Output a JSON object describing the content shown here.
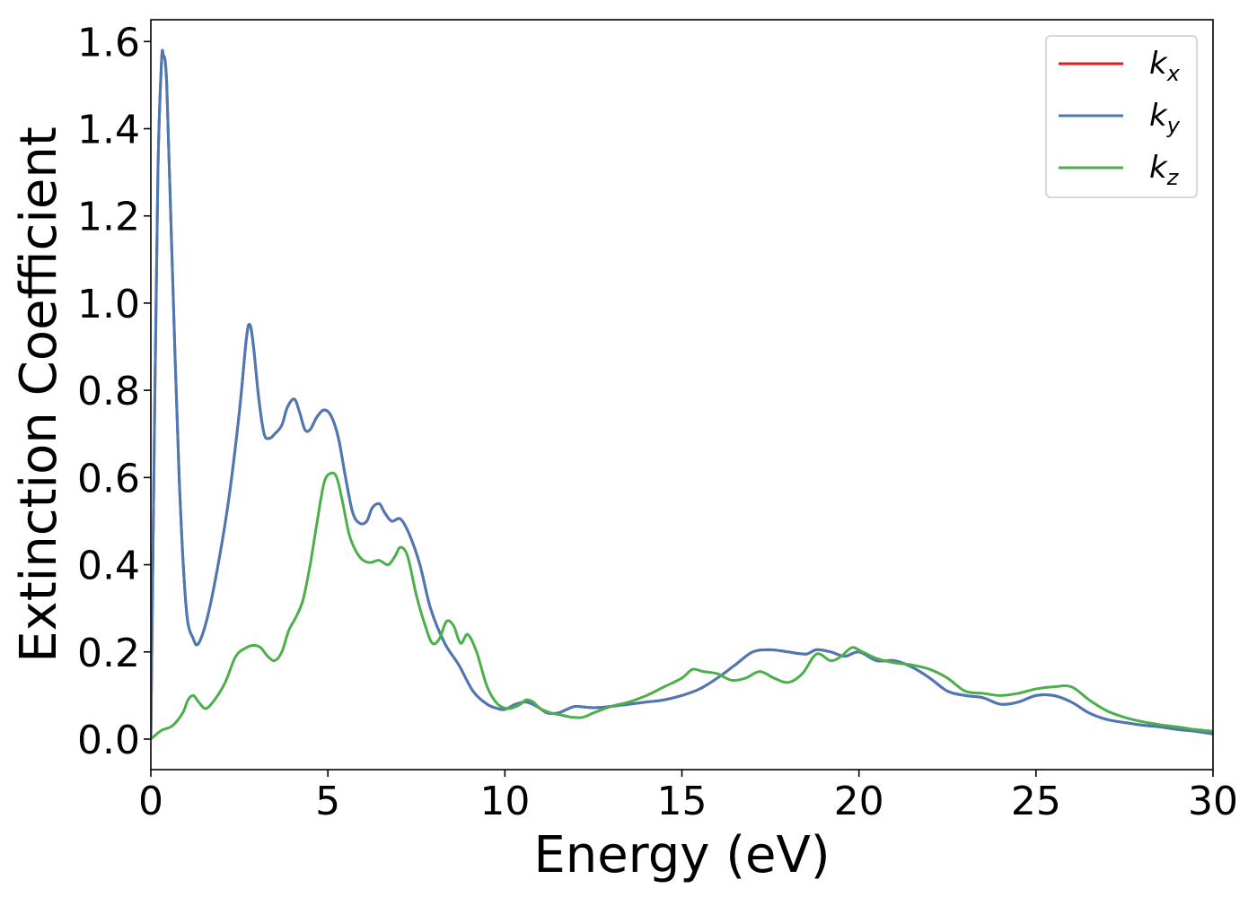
{
  "chart_data": {
    "type": "line",
    "xlabel": "Energy (eV)",
    "ylabel": "Extinction Coefficient",
    "xlim": [
      0,
      30
    ],
    "ylim": [
      -0.07,
      1.65
    ],
    "xticks": [
      0,
      5,
      10,
      15,
      20,
      25,
      30
    ],
    "xtick_labels": [
      "0",
      "5",
      "10",
      "15",
      "20",
      "25",
      "30"
    ],
    "yticks": [
      0.0,
      0.2,
      0.4,
      0.6,
      0.8,
      1.0,
      1.2,
      1.4,
      1.6
    ],
    "ytick_labels": [
      "0.0",
      "0.2",
      "0.4",
      "0.6",
      "0.8",
      "1.0",
      "1.2",
      "1.4",
      "1.6"
    ],
    "grid": false,
    "legend_position": "top-right",
    "series": [
      {
        "name": "k_x",
        "legend_main": "k",
        "legend_sub": "x",
        "color": "#e41a1c",
        "x": [
          0,
          0.1,
          0.2,
          0.3,
          0.35,
          0.45,
          0.6,
          0.8,
          1.0,
          1.2,
          1.35,
          1.6,
          1.9,
          2.2,
          2.5,
          2.7,
          2.8,
          2.9,
          3.05,
          3.2,
          3.35,
          3.5,
          3.7,
          3.85,
          4.05,
          4.2,
          4.35,
          4.5,
          4.7,
          4.9,
          5.1,
          5.3,
          5.5,
          5.7,
          5.9,
          6.1,
          6.25,
          6.45,
          6.6,
          6.8,
          7.05,
          7.3,
          7.6,
          7.9,
          8.3,
          8.7,
          9.1,
          9.5,
          9.8,
          10.0,
          10.3,
          10.6,
          10.9,
          11.2,
          11.5,
          11.8,
          12.0,
          12.5,
          13.0,
          13.5,
          14.0,
          14.5,
          15.0,
          15.5,
          16.0,
          16.5,
          17.0,
          17.5,
          18.0,
          18.5,
          18.8,
          19.2,
          19.6,
          20.0,
          20.5,
          21.0,
          21.5,
          22.0,
          22.5,
          23.0,
          23.5,
          24.0,
          24.5,
          25.0,
          25.5,
          26.0,
          26.5,
          27.0,
          27.5,
          28.0,
          28.5,
          29.0,
          29.5,
          30.0
        ],
        "y": [
          0.0,
          0.7,
          1.3,
          1.55,
          1.57,
          1.5,
          1.1,
          0.6,
          0.3,
          0.23,
          0.22,
          0.28,
          0.4,
          0.55,
          0.75,
          0.92,
          0.95,
          0.9,
          0.78,
          0.7,
          0.69,
          0.7,
          0.72,
          0.76,
          0.78,
          0.75,
          0.71,
          0.71,
          0.74,
          0.755,
          0.74,
          0.69,
          0.6,
          0.52,
          0.495,
          0.5,
          0.53,
          0.54,
          0.52,
          0.5,
          0.505,
          0.47,
          0.4,
          0.3,
          0.22,
          0.17,
          0.11,
          0.08,
          0.07,
          0.068,
          0.08,
          0.085,
          0.075,
          0.06,
          0.06,
          0.07,
          0.075,
          0.072,
          0.075,
          0.08,
          0.085,
          0.09,
          0.1,
          0.115,
          0.14,
          0.17,
          0.2,
          0.205,
          0.2,
          0.195,
          0.205,
          0.2,
          0.19,
          0.2,
          0.18,
          0.18,
          0.165,
          0.14,
          0.11,
          0.1,
          0.095,
          0.08,
          0.085,
          0.1,
          0.1,
          0.085,
          0.06,
          0.045,
          0.038,
          0.032,
          0.028,
          0.022,
          0.018,
          0.012
        ]
      },
      {
        "name": "k_y",
        "legend_main": "k",
        "legend_sub": "y",
        "color": "#4a7ab5",
        "x": [
          0,
          0.1,
          0.2,
          0.3,
          0.35,
          0.45,
          0.6,
          0.8,
          1.0,
          1.2,
          1.35,
          1.6,
          1.9,
          2.2,
          2.5,
          2.7,
          2.8,
          2.9,
          3.05,
          3.2,
          3.35,
          3.5,
          3.7,
          3.85,
          4.05,
          4.2,
          4.35,
          4.5,
          4.7,
          4.9,
          5.1,
          5.3,
          5.5,
          5.7,
          5.9,
          6.1,
          6.25,
          6.45,
          6.6,
          6.8,
          7.05,
          7.3,
          7.6,
          7.9,
          8.3,
          8.7,
          9.1,
          9.5,
          9.8,
          10.0,
          10.3,
          10.6,
          10.9,
          11.2,
          11.5,
          11.8,
          12.0,
          12.5,
          13.0,
          13.5,
          14.0,
          14.5,
          15.0,
          15.5,
          16.0,
          16.5,
          17.0,
          17.5,
          18.0,
          18.5,
          18.8,
          19.2,
          19.6,
          20.0,
          20.5,
          21.0,
          21.5,
          22.0,
          22.5,
          23.0,
          23.5,
          24.0,
          24.5,
          25.0,
          25.5,
          26.0,
          26.5,
          27.0,
          27.5,
          28.0,
          28.5,
          29.0,
          29.5,
          30.0
        ],
        "y": [
          0.0,
          0.7,
          1.3,
          1.55,
          1.57,
          1.5,
          1.1,
          0.6,
          0.3,
          0.23,
          0.22,
          0.28,
          0.4,
          0.55,
          0.75,
          0.92,
          0.95,
          0.9,
          0.78,
          0.7,
          0.69,
          0.7,
          0.72,
          0.76,
          0.78,
          0.75,
          0.71,
          0.71,
          0.74,
          0.755,
          0.74,
          0.69,
          0.6,
          0.52,
          0.495,
          0.5,
          0.53,
          0.54,
          0.52,
          0.5,
          0.505,
          0.47,
          0.4,
          0.3,
          0.22,
          0.17,
          0.11,
          0.08,
          0.07,
          0.068,
          0.08,
          0.085,
          0.075,
          0.06,
          0.06,
          0.07,
          0.075,
          0.072,
          0.075,
          0.08,
          0.085,
          0.09,
          0.1,
          0.115,
          0.14,
          0.17,
          0.2,
          0.205,
          0.2,
          0.195,
          0.205,
          0.2,
          0.19,
          0.2,
          0.18,
          0.18,
          0.165,
          0.14,
          0.11,
          0.1,
          0.095,
          0.08,
          0.085,
          0.1,
          0.1,
          0.085,
          0.06,
          0.045,
          0.038,
          0.032,
          0.028,
          0.022,
          0.018,
          0.012
        ]
      },
      {
        "name": "k_z",
        "legend_main": "k",
        "legend_sub": "z",
        "color": "#4daf4a",
        "x": [
          0,
          0.3,
          0.6,
          0.9,
          1.05,
          1.2,
          1.35,
          1.55,
          1.8,
          2.1,
          2.4,
          2.7,
          2.9,
          3.1,
          3.3,
          3.5,
          3.7,
          3.9,
          4.1,
          4.3,
          4.5,
          4.7,
          4.9,
          5.1,
          5.25,
          5.4,
          5.6,
          5.8,
          6.0,
          6.2,
          6.45,
          6.7,
          6.9,
          7.05,
          7.25,
          7.5,
          7.75,
          7.95,
          8.15,
          8.35,
          8.55,
          8.75,
          8.95,
          9.2,
          9.5,
          9.8,
          10.1,
          10.4,
          10.6,
          10.8,
          11.0,
          11.3,
          11.6,
          11.9,
          12.2,
          12.5,
          13.0,
          13.5,
          14.0,
          14.5,
          15.0,
          15.3,
          15.6,
          16.0,
          16.4,
          16.8,
          17.2,
          17.6,
          18.0,
          18.4,
          18.8,
          19.2,
          19.5,
          19.8,
          20.1,
          20.5,
          21.0,
          21.5,
          22.0,
          22.5,
          23.0,
          23.5,
          24.0,
          24.5,
          25.0,
          25.5,
          26.0,
          26.5,
          27.0,
          27.5,
          28.0,
          28.5,
          29.0,
          29.5,
          30.0
        ],
        "y": [
          0.0,
          0.02,
          0.03,
          0.06,
          0.09,
          0.1,
          0.085,
          0.07,
          0.09,
          0.13,
          0.19,
          0.21,
          0.215,
          0.21,
          0.19,
          0.18,
          0.2,
          0.25,
          0.28,
          0.32,
          0.4,
          0.5,
          0.59,
          0.61,
          0.6,
          0.55,
          0.47,
          0.43,
          0.41,
          0.405,
          0.41,
          0.4,
          0.42,
          0.44,
          0.42,
          0.33,
          0.26,
          0.22,
          0.23,
          0.27,
          0.26,
          0.22,
          0.24,
          0.2,
          0.12,
          0.08,
          0.07,
          0.078,
          0.09,
          0.085,
          0.07,
          0.06,
          0.055,
          0.05,
          0.05,
          0.06,
          0.075,
          0.085,
          0.1,
          0.12,
          0.14,
          0.16,
          0.155,
          0.15,
          0.135,
          0.14,
          0.155,
          0.14,
          0.13,
          0.15,
          0.195,
          0.18,
          0.19,
          0.21,
          0.2,
          0.185,
          0.175,
          0.17,
          0.16,
          0.14,
          0.11,
          0.105,
          0.1,
          0.105,
          0.115,
          0.12,
          0.12,
          0.09,
          0.065,
          0.05,
          0.04,
          0.033,
          0.028,
          0.022,
          0.018
        ]
      }
    ]
  }
}
